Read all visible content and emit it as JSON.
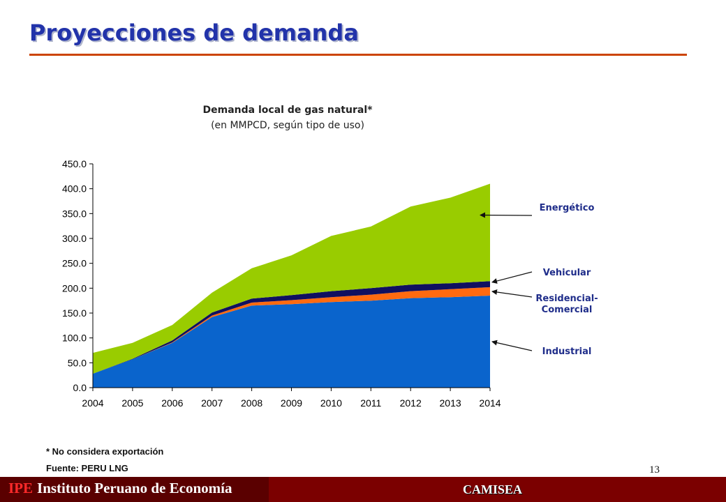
{
  "slide": {
    "title": "Proyecciones de demanda",
    "page_number": "13"
  },
  "notes": {
    "footnote": "* No considera exportación",
    "source": "Fuente: PERU LNG"
  },
  "footer": {
    "brand_abbr": "IPE",
    "brand_name": "Instituto Peruano de Economía",
    "project": "CAMISEA"
  },
  "chart_data": {
    "type": "area",
    "stacked": true,
    "title": "Demanda local de gas natural*",
    "subtitle": "(en MMPCD, según tipo de uso)",
    "x": [
      "2004",
      "2005",
      "2006",
      "2007",
      "2008",
      "2009",
      "2010",
      "2011",
      "2012",
      "2013",
      "2014"
    ],
    "ylim": [
      0,
      450
    ],
    "yticks": [
      "0.0",
      "50.0",
      "100.0",
      "150.0",
      "200.0",
      "250.0",
      "300.0",
      "350.0",
      "400.0",
      "450.0"
    ],
    "grid": false,
    "legend": "right, arrow-annotated",
    "series": [
      {
        "name": "Industrial",
        "color": "#0a64cc",
        "values": [
          28,
          57,
          90,
          142,
          165,
          168,
          172,
          175,
          180,
          182,
          185
        ]
      },
      {
        "name": "Residencial-Comercial",
        "color": "#ff6a10",
        "values": [
          0,
          0,
          1,
          3,
          6,
          8,
          10,
          12,
          14,
          16,
          17
        ]
      },
      {
        "name": "Vehicular",
        "color": "#101060",
        "values": [
          0,
          1,
          4,
          6,
          8,
          10,
          12,
          13,
          13,
          12,
          12
        ]
      },
      {
        "name": "Energético",
        "color": "#99cc00",
        "values": [
          42,
          32,
          31,
          40,
          61,
          80,
          111,
          124,
          157,
          172,
          196
        ]
      }
    ],
    "annotations": [
      {
        "series": "Energético",
        "label": "Energético"
      },
      {
        "series": "Vehicular",
        "label": "Vehicular"
      },
      {
        "series": "Residencial-Comercial",
        "label": "Residencial-\nComercial"
      },
      {
        "series": "Industrial",
        "label": "Industrial"
      }
    ]
  }
}
